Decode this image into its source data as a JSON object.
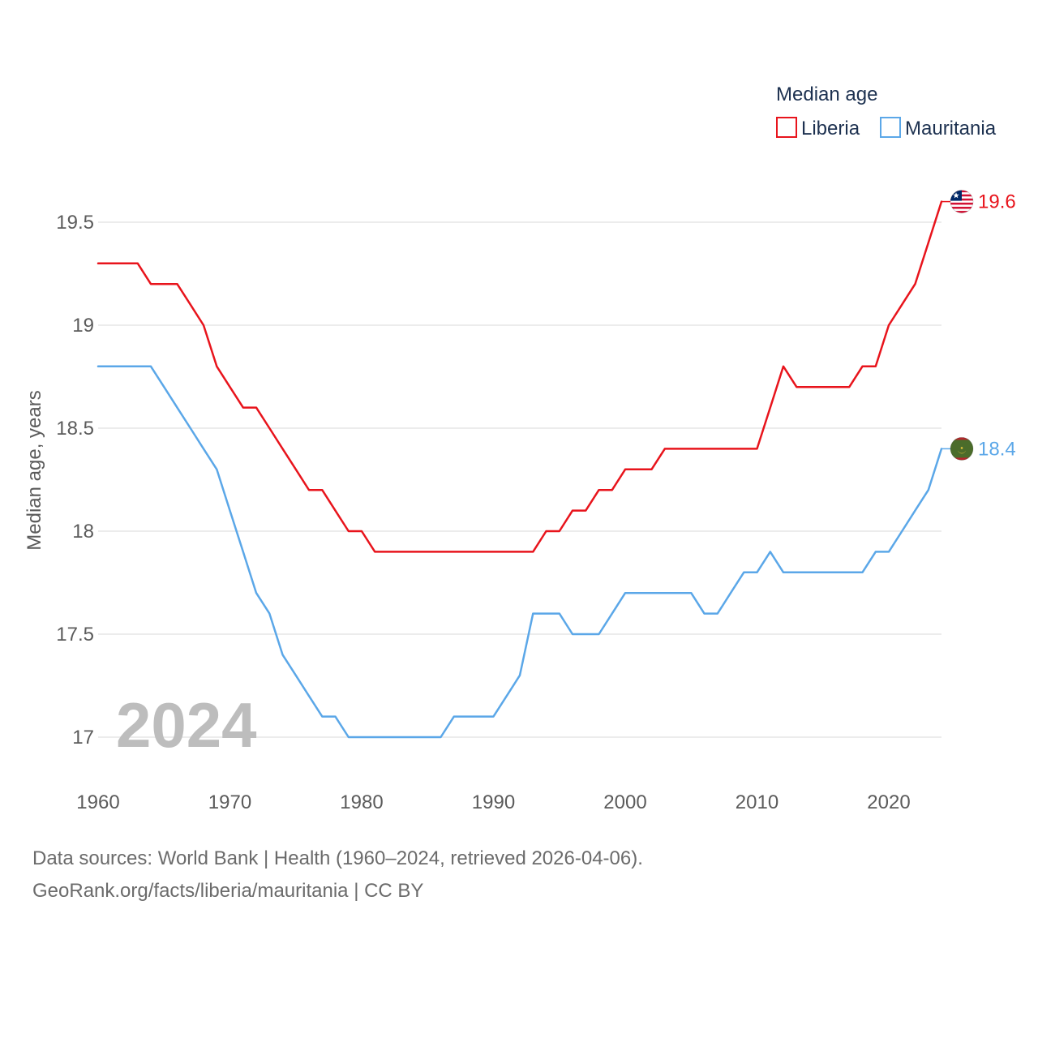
{
  "chart_data": {
    "type": "line",
    "ylabel": "Median age, years",
    "ylim": [
      16.8,
      19.75
    ],
    "yticks": [
      17,
      17.5,
      18,
      18.5,
      19,
      19.5
    ],
    "ytick_labels": [
      "17",
      "17.5",
      "18",
      "18.5",
      "19",
      "19.5"
    ],
    "xlim": [
      1960,
      2024
    ],
    "xticks": [
      1960,
      1970,
      1980,
      1990,
      2000,
      2010,
      2020
    ],
    "xtick_labels": [
      "1960",
      "1970",
      "1980",
      "1990",
      "2000",
      "2010",
      "2020"
    ],
    "grid": true,
    "legend": {
      "title": "Median age",
      "position": "top-right"
    },
    "year_label": "2024",
    "x": [
      1960,
      1961,
      1962,
      1963,
      1964,
      1965,
      1966,
      1967,
      1968,
      1969,
      1970,
      1971,
      1972,
      1973,
      1974,
      1975,
      1976,
      1977,
      1978,
      1979,
      1980,
      1981,
      1982,
      1983,
      1984,
      1985,
      1986,
      1987,
      1988,
      1989,
      1990,
      1991,
      1992,
      1993,
      1994,
      1995,
      1996,
      1997,
      1998,
      1999,
      2000,
      2001,
      2002,
      2003,
      2004,
      2005,
      2006,
      2007,
      2008,
      2009,
      2010,
      2011,
      2012,
      2013,
      2014,
      2015,
      2016,
      2017,
      2018,
      2019,
      2020,
      2021,
      2022,
      2023,
      2024
    ],
    "series": [
      {
        "name": "Liberia",
        "color": "#e8141c",
        "end_label": "19.6",
        "flag": "liberia-flag",
        "values": [
          19.3,
          19.3,
          19.3,
          19.3,
          19.2,
          19.2,
          19.2,
          19.1,
          19.0,
          18.8,
          18.7,
          18.6,
          18.6,
          18.5,
          18.4,
          18.3,
          18.2,
          18.2,
          18.1,
          18.0,
          18.0,
          17.9,
          17.9,
          17.9,
          17.9,
          17.9,
          17.9,
          17.9,
          17.9,
          17.9,
          17.9,
          17.9,
          17.9,
          17.9,
          18.0,
          18.0,
          18.1,
          18.1,
          18.2,
          18.2,
          18.3,
          18.3,
          18.3,
          18.4,
          18.4,
          18.4,
          18.4,
          18.4,
          18.4,
          18.4,
          18.4,
          18.6,
          18.8,
          18.7,
          18.7,
          18.7,
          18.7,
          18.7,
          18.8,
          18.8,
          19.0,
          19.1,
          19.2,
          19.4,
          19.6
        ]
      },
      {
        "name": "Mauritania",
        "color": "#5ba7e8",
        "end_label": "18.4",
        "flag": "mauritania-flag",
        "values": [
          18.8,
          18.8,
          18.8,
          18.8,
          18.8,
          18.7,
          18.6,
          18.5,
          18.4,
          18.3,
          18.1,
          17.9,
          17.7,
          17.6,
          17.4,
          17.3,
          17.2,
          17.1,
          17.1,
          17.0,
          17.0,
          17.0,
          17.0,
          17.0,
          17.0,
          17.0,
          17.0,
          17.1,
          17.1,
          17.1,
          17.1,
          17.2,
          17.3,
          17.6,
          17.6,
          17.6,
          17.5,
          17.5,
          17.5,
          17.6,
          17.7,
          17.7,
          17.7,
          17.7,
          17.7,
          17.7,
          17.6,
          17.6,
          17.7,
          17.8,
          17.8,
          17.9,
          17.8,
          17.8,
          17.8,
          17.8,
          17.8,
          17.8,
          17.8,
          17.9,
          17.9,
          18.0,
          18.1,
          18.2,
          18.4
        ]
      }
    ]
  },
  "footer": {
    "line1": "Data sources: World Bank | Health (1960–2024, retrieved 2026-04-06).",
    "line2": "GeoRank.org/facts/liberia/mauritania | CC BY"
  }
}
